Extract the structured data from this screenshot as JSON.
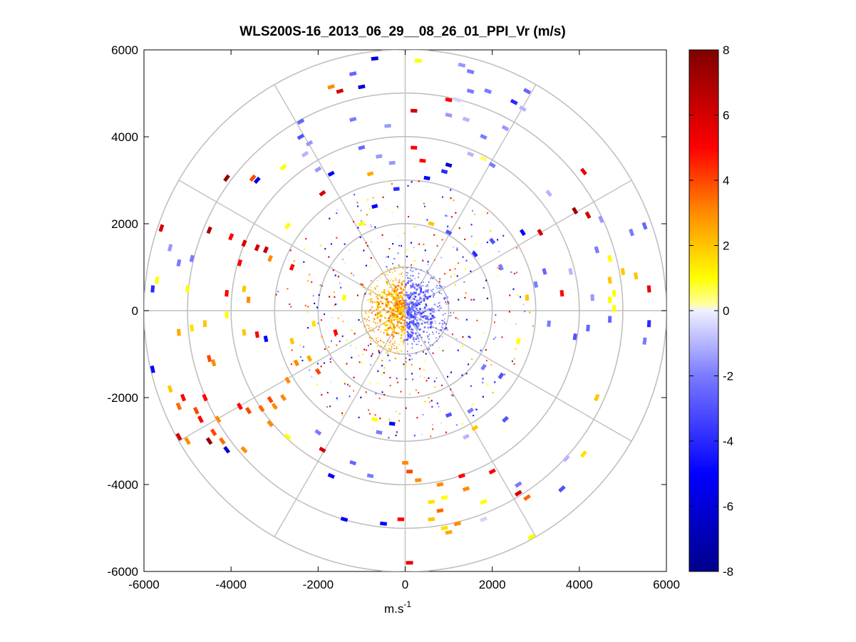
{
  "chart_data": {
    "type": "scatter",
    "title": "WLS200S-16_2013_06_29__08_26_01_PPI_Vr (m/s)",
    "xlabel": "m.s",
    "xlabel_superscript": "-1",
    "ylabel": "",
    "xlim": [
      -6000,
      6000
    ],
    "ylim": [
      -6000,
      6000
    ],
    "x_ticks": [
      -6000,
      -4000,
      -2000,
      0,
      2000,
      4000,
      6000
    ],
    "y_ticks": [
      -6000,
      -4000,
      -2000,
      0,
      2000,
      4000,
      6000
    ],
    "x_tick_labels": [
      "-6000",
      "-4000",
      "-2000",
      "0",
      "2000",
      "4000",
      "6000"
    ],
    "y_tick_labels": [
      "-6000",
      "-4000",
      "-2000",
      "0",
      "2000",
      "4000",
      "6000"
    ],
    "polar_grid": {
      "ring_radii": [
        1000,
        2000,
        3000,
        4000,
        5000,
        6000
      ],
      "spoke_angles_deg": [
        0,
        30,
        60,
        90,
        120,
        150,
        180,
        210,
        240,
        270,
        300,
        330
      ],
      "grid_color": "#c0c0c0"
    },
    "colorbar": {
      "min": -8,
      "max": 8,
      "ticks": [
        -8,
        -6,
        -4,
        -2,
        0,
        2,
        4,
        6,
        8
      ],
      "tick_labels": [
        "-8",
        "-6",
        "-4",
        "-2",
        "0",
        "2",
        "4",
        "6",
        "8"
      ],
      "colormap_stops": [
        {
          "value": -8,
          "color": "#00008b"
        },
        {
          "value": -5,
          "color": "#0000ff"
        },
        {
          "value": -2,
          "color": "#7a7aff"
        },
        {
          "value": 0,
          "color": "#f0f0ff"
        },
        {
          "value": 0.2,
          "color": "#ffffa0"
        },
        {
          "value": 1,
          "color": "#ffff00"
        },
        {
          "value": 3,
          "color": "#ff8c00"
        },
        {
          "value": 5,
          "color": "#ff0000"
        },
        {
          "value": 8,
          "color": "#800000"
        }
      ]
    },
    "near_field_wedges": {
      "description": "dense radial velocity returns within ~1000 m",
      "west_sector_value": 2.5,
      "east_sector_value": -2.5
    },
    "points": [
      {
        "x": -700,
        "y": 5800,
        "v": -6
      },
      {
        "x": 300,
        "y": 5750,
        "v": 1
      },
      {
        "x": 1300,
        "y": 5650,
        "v": -1.5
      },
      {
        "x": 1500,
        "y": 5500,
        "v": -2
      },
      {
        "x": -1200,
        "y": 5450,
        "v": -2.5
      },
      {
        "x": -1000,
        "y": 5150,
        "v": -6
      },
      {
        "x": -1700,
        "y": 5150,
        "v": 3
      },
      {
        "x": -1500,
        "y": 5050,
        "v": 6
      },
      {
        "x": 1500,
        "y": 5050,
        "v": -2
      },
      {
        "x": 1900,
        "y": 5050,
        "v": -2
      },
      {
        "x": 2800,
        "y": 5050,
        "v": -2.5
      },
      {
        "x": 1000,
        "y": 4850,
        "v": 5
      },
      {
        "x": 1200,
        "y": 4850,
        "v": -0.5
      },
      {
        "x": 2500,
        "y": 4800,
        "v": -4
      },
      {
        "x": 2700,
        "y": 4650,
        "v": -1
      },
      {
        "x": 200,
        "y": 4600,
        "v": 6
      },
      {
        "x": 1000,
        "y": 4500,
        "v": -1.5
      },
      {
        "x": 1400,
        "y": 4400,
        "v": -1
      },
      {
        "x": -1200,
        "y": 4400,
        "v": -2
      },
      {
        "x": -2400,
        "y": 4350,
        "v": -2.5
      },
      {
        "x": -400,
        "y": 4250,
        "v": -1.5
      },
      {
        "x": 2300,
        "y": 4200,
        "v": -1.5
      },
      {
        "x": -2400,
        "y": 4000,
        "v": -3
      },
      {
        "x": 1800,
        "y": 4000,
        "v": -2
      },
      {
        "x": -2200,
        "y": 3850,
        "v": -1.5
      },
      {
        "x": 200,
        "y": 3750,
        "v": 5
      },
      {
        "x": -1000,
        "y": 3750,
        "v": -2.5
      },
      {
        "x": -600,
        "y": 3550,
        "v": -1.5
      },
      {
        "x": -2300,
        "y": 3600,
        "v": -1
      },
      {
        "x": 1500,
        "y": 3600,
        "v": -1
      },
      {
        "x": 400,
        "y": 3450,
        "v": 5
      },
      {
        "x": 1800,
        "y": 3500,
        "v": 0.5
      },
      {
        "x": -300,
        "y": 3400,
        "v": -1.5
      },
      {
        "x": 2000,
        "y": 3350,
        "v": -2
      },
      {
        "x": 1000,
        "y": 3350,
        "v": -6
      },
      {
        "x": -2800,
        "y": 3300,
        "v": 1
      },
      {
        "x": -4100,
        "y": 3050,
        "v": 7.5
      },
      {
        "x": -3500,
        "y": 3050,
        "v": 4
      },
      {
        "x": -3400,
        "y": 3000,
        "v": -6
      },
      {
        "x": -2000,
        "y": 3250,
        "v": -1.5
      },
      {
        "x": -1700,
        "y": 3150,
        "v": -5
      },
      {
        "x": 900,
        "y": 3200,
        "v": -4
      },
      {
        "x": 4100,
        "y": 3200,
        "v": 5.5
      },
      {
        "x": -800,
        "y": 3150,
        "v": 2.5
      },
      {
        "x": 500,
        "y": 3050,
        "v": -5
      },
      {
        "x": 3300,
        "y": 2700,
        "v": -1
      },
      {
        "x": -1900,
        "y": 2700,
        "v": 6
      },
      {
        "x": -200,
        "y": 2800,
        "v": -4
      },
      {
        "x": -5600,
        "y": 1900,
        "v": 6
      },
      {
        "x": -4500,
        "y": 1850,
        "v": 7
      },
      {
        "x": -4000,
        "y": 1700,
        "v": 5
      },
      {
        "x": 3100,
        "y": 1800,
        "v": 6
      },
      {
        "x": 3900,
        "y": 2300,
        "v": 7.5
      },
      {
        "x": 4200,
        "y": 2200,
        "v": 6
      },
      {
        "x": 4500,
        "y": 2100,
        "v": -1.5
      },
      {
        "x": 5200,
        "y": 1800,
        "v": -2
      },
      {
        "x": 5500,
        "y": 1950,
        "v": -2.5
      },
      {
        "x": -3700,
        "y": 1550,
        "v": 6
      },
      {
        "x": -3400,
        "y": 1450,
        "v": 6
      },
      {
        "x": -3200,
        "y": 1400,
        "v": 6.5
      },
      {
        "x": -5400,
        "y": 1450,
        "v": -1.5
      },
      {
        "x": -4900,
        "y": 1200,
        "v": -2
      },
      {
        "x": -5200,
        "y": 1100,
        "v": -2
      },
      {
        "x": -2700,
        "y": 1950,
        "v": 1
      },
      {
        "x": -3800,
        "y": 1100,
        "v": 5
      },
      {
        "x": -5700,
        "y": 700,
        "v": 1
      },
      {
        "x": -5800,
        "y": 500,
        "v": -4
      },
      {
        "x": -5000,
        "y": 500,
        "v": 1
      },
      {
        "x": -3100,
        "y": 1200,
        "v": 3
      },
      {
        "x": -4100,
        "y": 400,
        "v": 5
      },
      {
        "x": -3700,
        "y": 500,
        "v": 2
      },
      {
        "x": -3600,
        "y": 250,
        "v": 3
      },
      {
        "x": 4400,
        "y": 1400,
        "v": -2
      },
      {
        "x": 4700,
        "y": 1200,
        "v": 1
      },
      {
        "x": 5000,
        "y": 900,
        "v": 2
      },
      {
        "x": 4700,
        "y": 700,
        "v": 2
      },
      {
        "x": 5300,
        "y": 800,
        "v": 2
      },
      {
        "x": 5600,
        "y": 500,
        "v": 5.5
      },
      {
        "x": 4800,
        "y": 400,
        "v": 1
      },
      {
        "x": 4700,
        "y": 250,
        "v": 1
      },
      {
        "x": 4800,
        "y": 50,
        "v": 1
      },
      {
        "x": 4300,
        "y": 300,
        "v": -1.5
      },
      {
        "x": 3800,
        "y": 900,
        "v": -1
      },
      {
        "x": 3600,
        "y": 400,
        "v": 5
      },
      {
        "x": 3000,
        "y": 600,
        "v": -2
      },
      {
        "x": 3200,
        "y": 900,
        "v": -2.5
      },
      {
        "x": 2800,
        "y": 300,
        "v": 2
      },
      {
        "x": 4700,
        "y": -200,
        "v": -2.5
      },
      {
        "x": 5600,
        "y": -300,
        "v": -4
      },
      {
        "x": 5500,
        "y": -700,
        "v": -2
      },
      {
        "x": 4200,
        "y": -400,
        "v": -2.5
      },
      {
        "x": 3900,
        "y": -600,
        "v": -3
      },
      {
        "x": 3300,
        "y": -300,
        "v": -2
      },
      {
        "x": -4100,
        "y": -100,
        "v": 1
      },
      {
        "x": -4600,
        "y": -300,
        "v": 2
      },
      {
        "x": -5200,
        "y": -500,
        "v": 2.5
      },
      {
        "x": -4900,
        "y": -400,
        "v": 1.5
      },
      {
        "x": -3700,
        "y": -500,
        "v": 2
      },
      {
        "x": -3400,
        "y": -550,
        "v": 5
      },
      {
        "x": -3200,
        "y": -650,
        "v": -5
      },
      {
        "x": -4500,
        "y": -1100,
        "v": 4
      },
      {
        "x": -4400,
        "y": -1200,
        "v": 3
      },
      {
        "x": -5800,
        "y": -1350,
        "v": -5
      },
      {
        "x": -5400,
        "y": -1800,
        "v": 2
      },
      {
        "x": -5100,
        "y": -2000,
        "v": 5
      },
      {
        "x": -5200,
        "y": -2200,
        "v": 3.5
      },
      {
        "x": -4600,
        "y": -2000,
        "v": 5
      },
      {
        "x": -4800,
        "y": -2300,
        "v": 4
      },
      {
        "x": -3800,
        "y": -2200,
        "v": 5
      },
      {
        "x": -3600,
        "y": -2300,
        "v": 4
      },
      {
        "x": -3300,
        "y": -2250,
        "v": 3.5
      },
      {
        "x": -3100,
        "y": -2050,
        "v": 4
      },
      {
        "x": -2800,
        "y": -2000,
        "v": 3
      },
      {
        "x": -4300,
        "y": -2500,
        "v": 3
      },
      {
        "x": -4700,
        "y": -2500,
        "v": 5
      },
      {
        "x": -4400,
        "y": -2800,
        "v": 4
      },
      {
        "x": -4200,
        "y": -3000,
        "v": 3.5
      },
      {
        "x": -4500,
        "y": -3000,
        "v": 7.5
      },
      {
        "x": -4100,
        "y": -3200,
        "v": -6
      },
      {
        "x": -5200,
        "y": -2900,
        "v": 6
      },
      {
        "x": -5000,
        "y": -3000,
        "v": 3
      },
      {
        "x": -3700,
        "y": -3200,
        "v": 3
      },
      {
        "x": -2700,
        "y": -2900,
        "v": 1
      },
      {
        "x": -3100,
        "y": -2600,
        "v": 3
      },
      {
        "x": -2000,
        "y": -2800,
        "v": -2
      },
      {
        "x": -1900,
        "y": -3200,
        "v": 6
      },
      {
        "x": -1200,
        "y": -3500,
        "v": -2.5
      },
      {
        "x": -700,
        "y": -2500,
        "v": 1
      },
      {
        "x": -300,
        "y": -2600,
        "v": -5
      },
      {
        "x": -600,
        "y": -2800,
        "v": -2
      },
      {
        "x": 1000,
        "y": -2400,
        "v": -3
      },
      {
        "x": 1500,
        "y": -2300,
        "v": -2
      },
      {
        "x": 1600,
        "y": -2700,
        "v": 2
      },
      {
        "x": 2300,
        "y": -2500,
        "v": -3
      },
      {
        "x": 1400,
        "y": -2900,
        "v": -1
      },
      {
        "x": -1700,
        "y": -3800,
        "v": -5
      },
      {
        "x": -800,
        "y": -3800,
        "v": -2
      },
      {
        "x": 0,
        "y": -3500,
        "v": 3
      },
      {
        "x": 100,
        "y": -3700,
        "v": 4
      },
      {
        "x": 300,
        "y": -3900,
        "v": 3
      },
      {
        "x": 800,
        "y": -4000,
        "v": 3
      },
      {
        "x": 1300,
        "y": -3800,
        "v": 5
      },
      {
        "x": 2000,
        "y": -3700,
        "v": 5
      },
      {
        "x": 1400,
        "y": -4100,
        "v": 3
      },
      {
        "x": 2600,
        "y": -4000,
        "v": -2
      },
      {
        "x": 3600,
        "y": -4100,
        "v": -3
      },
      {
        "x": 3700,
        "y": -3400,
        "v": -1
      },
      {
        "x": 4100,
        "y": -3300,
        "v": 1.5
      },
      {
        "x": 4400,
        "y": -2000,
        "v": 2
      },
      {
        "x": 2800,
        "y": -4300,
        "v": 3.5
      },
      {
        "x": 2600,
        "y": -4200,
        "v": 6
      },
      {
        "x": 1800,
        "y": -4400,
        "v": 1
      },
      {
        "x": 900,
        "y": -4300,
        "v": 1
      },
      {
        "x": 600,
        "y": -4400,
        "v": 1.5
      },
      {
        "x": 800,
        "y": -4600,
        "v": 3.5
      },
      {
        "x": 600,
        "y": -4800,
        "v": 2
      },
      {
        "x": 1800,
        "y": -4800,
        "v": -0.5
      },
      {
        "x": 1200,
        "y": -4900,
        "v": 3
      },
      {
        "x": 900,
        "y": -5000,
        "v": 1.5
      },
      {
        "x": 1000,
        "y": -5100,
        "v": 2.5
      },
      {
        "x": -500,
        "y": -4900,
        "v": -5
      },
      {
        "x": -100,
        "y": -4800,
        "v": 5
      },
      {
        "x": -1400,
        "y": -4800,
        "v": -5
      },
      {
        "x": 2900,
        "y": -5200,
        "v": 1
      },
      {
        "x": 100,
        "y": -5800,
        "v": 5.5
      },
      {
        "x": -3000,
        "y": -2200,
        "v": 3
      },
      {
        "x": -2700,
        "y": -1600,
        "v": 3
      },
      {
        "x": -2500,
        "y": -1200,
        "v": 3
      },
      {
        "x": -2200,
        "y": -1100,
        "v": 2.5
      },
      {
        "x": -2000,
        "y": -1400,
        "v": 4
      },
      {
        "x": -2600,
        "y": -700,
        "v": 2
      },
      {
        "x": -2100,
        "y": -300,
        "v": 1.5
      },
      {
        "x": -1400,
        "y": 300,
        "v": 1
      },
      {
        "x": -1600,
        "y": -500,
        "v": 5
      },
      {
        "x": 1800,
        "y": -1300,
        "v": -2
      },
      {
        "x": 2200,
        "y": -1500,
        "v": -3
      },
      {
        "x": 2600,
        "y": -700,
        "v": 1
      },
      {
        "x": 2200,
        "y": 1000,
        "v": -2
      },
      {
        "x": 2000,
        "y": 1600,
        "v": -3
      },
      {
        "x": 2700,
        "y": 1800,
        "v": -5
      },
      {
        "x": -2600,
        "y": 1000,
        "v": 5
      },
      {
        "x": -1000,
        "y": 2000,
        "v": 1
      },
      {
        "x": -700,
        "y": 2400,
        "v": -5
      },
      {
        "x": 600,
        "y": 2000,
        "v": 2
      },
      {
        "x": 1000,
        "y": 1800,
        "v": -3
      },
      {
        "x": 1600,
        "y": 1300,
        "v": -4
      }
    ]
  }
}
